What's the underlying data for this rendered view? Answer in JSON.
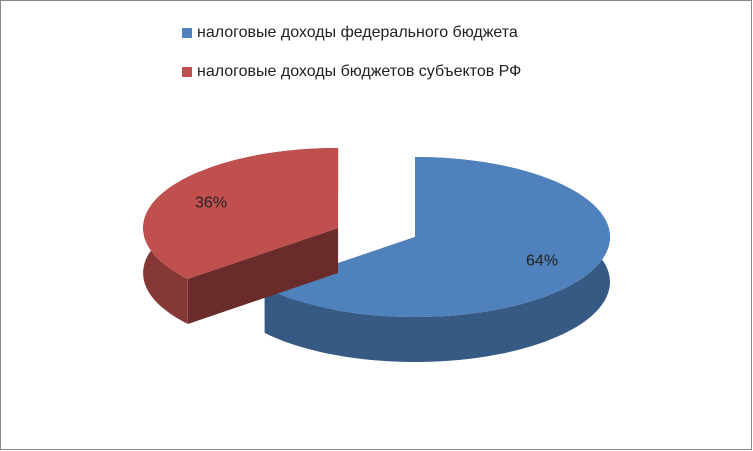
{
  "chart_data": {
    "type": "pie",
    "series": [
      {
        "name": "налоговые доходы федерального бюджета",
        "color": "#4f81bd",
        "values": [
          64
        ],
        "value_labels": [
          "64%"
        ]
      },
      {
        "name": "налоговые доходы бюджетов субъектов РФ",
        "color": "#c0504d",
        "values": [
          36
        ],
        "value_labels": [
          "36%"
        ]
      }
    ],
    "legend": "top"
  }
}
